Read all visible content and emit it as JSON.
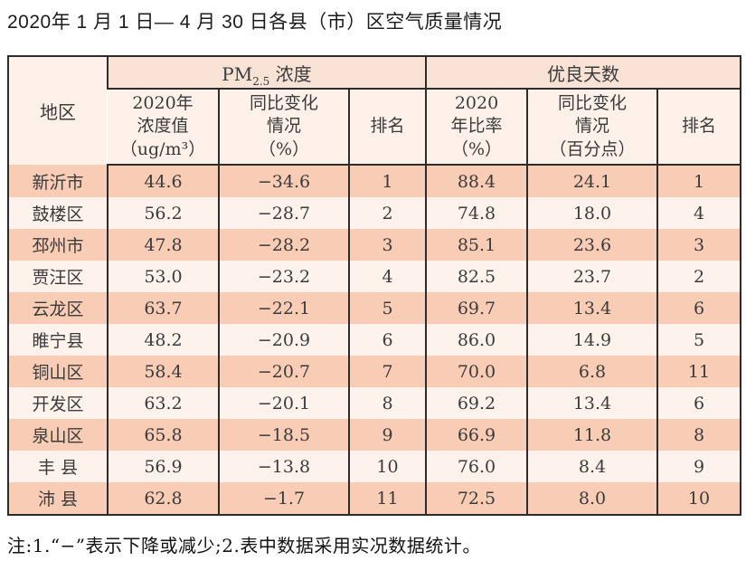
{
  "title": "2020年 1 月 1 日— 4 月 30 日各县（市）区空气质量情况",
  "colors": {
    "row_stripe_dark": "#f8ccb5",
    "row_stripe_light": "#fdf2ec",
    "header_group_bg": "#f8e2d5",
    "header_sub_bg": "#fdf1ea",
    "border": "#2c2c2c",
    "text": "#3b3b3b"
  },
  "table": {
    "header": {
      "region": "地区",
      "pm_group": {
        "prefix": "PM",
        "sub": "2.5",
        "suffix": " 浓度"
      },
      "days_group": "优良天数",
      "pm_value": "2020年\n浓度值\n（ug/m³）",
      "pm_change": "同比变化\n情况\n（%）",
      "pm_rank": "排名",
      "days_rate": "2020\n年比率\n（%）",
      "days_change": "同比变化\n情况\n（百分点）",
      "days_rank": "排名"
    },
    "rows": [
      {
        "region": "新沂市",
        "pm_value": "44.6",
        "pm_change": "−34.6",
        "pm_rank": "1",
        "days_rate": "88.4",
        "days_change": "24.1",
        "days_rank": "1"
      },
      {
        "region": "鼓楼区",
        "pm_value": "56.2",
        "pm_change": "−28.7",
        "pm_rank": "2",
        "days_rate": "74.8",
        "days_change": "18.0",
        "days_rank": "4"
      },
      {
        "region": "邳州市",
        "pm_value": "47.8",
        "pm_change": "−28.2",
        "pm_rank": "3",
        "days_rate": "85.1",
        "days_change": "23.6",
        "days_rank": "3"
      },
      {
        "region": "贾汪区",
        "pm_value": "53.0",
        "pm_change": "−23.2",
        "pm_rank": "4",
        "days_rate": "82.5",
        "days_change": "23.7",
        "days_rank": "2"
      },
      {
        "region": "云龙区",
        "pm_value": "63.7",
        "pm_change": "−22.1",
        "pm_rank": "5",
        "days_rate": "69.7",
        "days_change": "13.4",
        "days_rank": "6"
      },
      {
        "region": "睢宁县",
        "pm_value": "48.2",
        "pm_change": "−20.9",
        "pm_rank": "6",
        "days_rate": "86.0",
        "days_change": "14.9",
        "days_rank": "5"
      },
      {
        "region": "铜山区",
        "pm_value": "58.4",
        "pm_change": "−20.7",
        "pm_rank": "7",
        "days_rate": "70.0",
        "days_change": "6.8",
        "days_rank": "11"
      },
      {
        "region": "开发区",
        "pm_value": "63.2",
        "pm_change": "−20.1",
        "pm_rank": "8",
        "days_rate": "69.2",
        "days_change": "13.4",
        "days_rank": "6"
      },
      {
        "region": "泉山区",
        "pm_value": "65.8",
        "pm_change": "−18.5",
        "pm_rank": "9",
        "days_rate": "66.9",
        "days_change": "11.8",
        "days_rank": "8"
      },
      {
        "region": "丰 县",
        "pm_value": "56.9",
        "pm_change": "−13.8",
        "pm_rank": "10",
        "days_rate": "76.0",
        "days_change": "8.4",
        "days_rank": "9"
      },
      {
        "region": "沛 县",
        "pm_value": "62.8",
        "pm_change": "−1.7",
        "pm_rank": "11",
        "days_rate": "72.5",
        "days_change": "8.0",
        "days_rank": "10"
      }
    ]
  },
  "footnote": "注:1.“−”表示下降或减少;2.表中数据采用实况数据统计。"
}
